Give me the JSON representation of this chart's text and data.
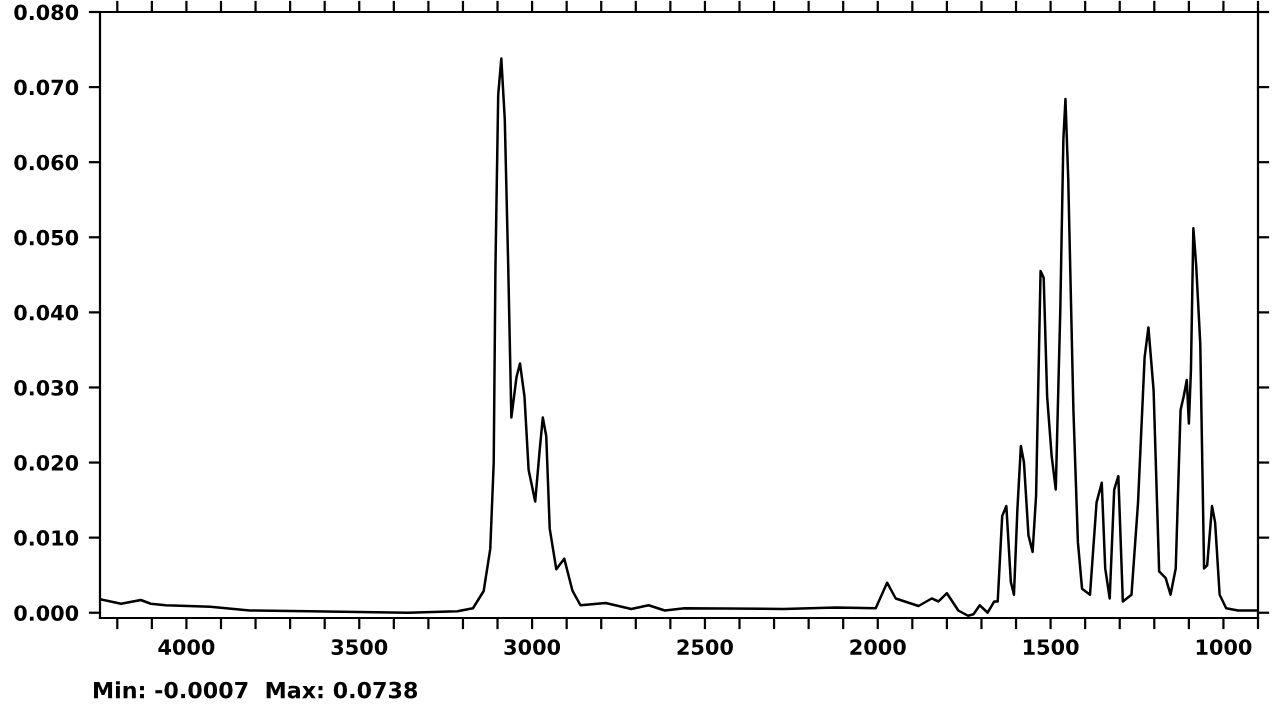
{
  "chart_data": {
    "type": "line",
    "x": [
      4250,
      4189,
      4132,
      4103,
      4060,
      3931,
      3817,
      3645,
      3359,
      3216,
      3171,
      3140,
      3121,
      3111,
      3106,
      3098,
      3089,
      3079,
      3069,
      3060,
      3045,
      3035,
      3022,
      3010,
      2991,
      2978,
      2969,
      2959,
      2949,
      2930,
      2907,
      2883,
      2860,
      2787,
      2713,
      2663,
      2616,
      2559,
      2273,
      2120,
      2006,
      1973,
      1948,
      1882,
      1844,
      1824,
      1800,
      1767,
      1739,
      1723,
      1705,
      1682,
      1663,
      1653,
      1640,
      1628,
      1615,
      1606,
      1596,
      1586,
      1577,
      1564,
      1552,
      1542,
      1529,
      1520,
      1510,
      1497,
      1485,
      1472,
      1463,
      1457,
      1449,
      1434,
      1421,
      1409,
      1386,
      1367,
      1352,
      1342,
      1329,
      1316,
      1304,
      1291,
      1266,
      1247,
      1228,
      1217,
      1202,
      1186,
      1167,
      1153,
      1138,
      1124,
      1115,
      1106,
      1100,
      1094,
      1087,
      1079,
      1067,
      1056,
      1047,
      1033,
      1024,
      1011,
      992,
      958,
      906
    ],
    "series": [
      {
        "color": "#000000",
        "values": [
          0.0018,
          0.0012,
          0.0017,
          0.0012,
          0.001,
          0.0008,
          0.0003,
          0.0002,
          0.0,
          0.0002,
          0.0006,
          0.0029,
          0.0085,
          0.02,
          0.046,
          0.069,
          0.0738,
          0.0657,
          0.046,
          0.026,
          0.0314,
          0.0332,
          0.0288,
          0.019,
          0.0148,
          0.0217,
          0.026,
          0.0235,
          0.0112,
          0.0058,
          0.0072,
          0.0029,
          0.001,
          0.0013,
          0.0005,
          0.001,
          0.0003,
          0.0006,
          0.0005,
          0.0007,
          0.0006,
          0.004,
          0.0019,
          0.0009,
          0.0019,
          0.0015,
          0.0026,
          0.0003,
          -0.0004,
          -0.0002,
          0.001,
          0.0,
          0.0015,
          0.0015,
          0.0129,
          0.0142,
          0.0041,
          0.0024,
          0.0138,
          0.0222,
          0.02,
          0.0103,
          0.0081,
          0.0156,
          0.0455,
          0.0446,
          0.0288,
          0.0209,
          0.0164,
          0.0402,
          0.0631,
          0.0684,
          0.0578,
          0.027,
          0.0094,
          0.0032,
          0.0024,
          0.0147,
          0.0173,
          0.0059,
          0.0019,
          0.0164,
          0.0182,
          0.0015,
          0.0024,
          0.0147,
          0.034,
          0.038,
          0.0296,
          0.0055,
          0.0046,
          0.0024,
          0.0059,
          0.027,
          0.0288,
          0.031,
          0.0252,
          0.0323,
          0.0512,
          0.0464,
          0.0358,
          0.0059,
          0.0063,
          0.0142,
          0.012,
          0.0024,
          0.0006,
          0.0003,
          0.0003
        ]
      }
    ],
    "xlim": [
      4250,
      900
    ],
    "ylim": [
      -0.0007,
      0.08
    ],
    "xticks": [
      {
        "value": 4200,
        "label": null
      },
      {
        "value": 4100,
        "label": null
      },
      4000,
      {
        "value": 3900,
        "label": null
      },
      {
        "value": 3800,
        "label": null
      },
      {
        "value": 3700,
        "label": null
      },
      {
        "value": 3600,
        "label": null
      },
      3500,
      {
        "value": 3400,
        "label": null
      },
      {
        "value": 3300,
        "label": null
      },
      {
        "value": 3200,
        "label": null
      },
      {
        "value": 3100,
        "label": null
      },
      3000,
      {
        "value": 2900,
        "label": null
      },
      {
        "value": 2800,
        "label": null
      },
      {
        "value": 2700,
        "label": null
      },
      {
        "value": 2600,
        "label": null
      },
      2500,
      {
        "value": 2400,
        "label": null
      },
      {
        "value": 2300,
        "label": null
      },
      {
        "value": 2200,
        "label": null
      },
      {
        "value": 2100,
        "label": null
      },
      2000,
      {
        "value": 1900,
        "label": null
      },
      {
        "value": 1800,
        "label": null
      },
      {
        "value": 1700,
        "label": null
      },
      {
        "value": 1600,
        "label": null
      },
      1500,
      {
        "value": 1400,
        "label": null
      },
      {
        "value": 1300,
        "label": null
      },
      {
        "value": 1200,
        "label": null
      },
      {
        "value": 1100,
        "label": null
      },
      1000,
      {
        "value": 900,
        "label": null
      }
    ],
    "yticks": [
      {
        "value": 0.0,
        "label": "0.000"
      },
      {
        "value": 0.01,
        "label": "0.010"
      },
      {
        "value": 0.02,
        "label": "0.020"
      },
      {
        "value": 0.03,
        "label": "0.030"
      },
      {
        "value": 0.04,
        "label": "0.040"
      },
      {
        "value": 0.05,
        "label": "0.050"
      },
      {
        "value": 0.06,
        "label": "0.060"
      },
      {
        "value": 0.07,
        "label": "0.070"
      },
      {
        "value": 0.08,
        "label": "0.080"
      }
    ],
    "grid": false,
    "legend": false,
    "annotations": [
      "Min: -0.0007  Max: 0.0738"
    ]
  }
}
